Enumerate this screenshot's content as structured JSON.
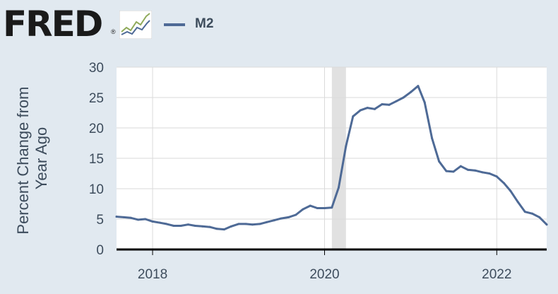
{
  "header": {
    "logo_text": "FRED",
    "logo_mark": "®",
    "logo_icon": "line-graph-icon"
  },
  "colors": {
    "background": "#e1e9f0",
    "plot_background": "#ffffff",
    "series": "#4e6a96",
    "recession_band": "#e1e1e1",
    "axis": "#000000",
    "gridline": "#dadada"
  },
  "chart_data": {
    "type": "line",
    "ylabel": "Percent Change from Year Ago",
    "ylim": [
      0,
      30
    ],
    "yticks": [
      0,
      5,
      10,
      15,
      20,
      25,
      30
    ],
    "xlim": [
      "2017-08-01",
      "2022-08-01"
    ],
    "xticks": [
      "2018",
      "2020",
      "2022"
    ],
    "grid": true,
    "legend_position": "top-left",
    "recessions": [
      {
        "start": "2020-02-01",
        "end": "2020-04-01"
      }
    ],
    "series": [
      {
        "name": "M2",
        "x": [
          "2017-08-01",
          "2017-09-01",
          "2017-10-01",
          "2017-11-01",
          "2017-12-01",
          "2018-01-01",
          "2018-02-01",
          "2018-03-01",
          "2018-04-01",
          "2018-05-01",
          "2018-06-01",
          "2018-07-01",
          "2018-08-01",
          "2018-09-01",
          "2018-10-01",
          "2018-11-01",
          "2018-12-01",
          "2019-01-01",
          "2019-02-01",
          "2019-03-01",
          "2019-04-01",
          "2019-05-01",
          "2019-06-01",
          "2019-07-01",
          "2019-08-01",
          "2019-09-01",
          "2019-10-01",
          "2019-11-01",
          "2019-12-01",
          "2020-01-01",
          "2020-02-01",
          "2020-03-01",
          "2020-04-01",
          "2020-05-01",
          "2020-06-01",
          "2020-07-01",
          "2020-08-01",
          "2020-09-01",
          "2020-10-01",
          "2020-11-01",
          "2020-12-01",
          "2021-01-01",
          "2021-02-01",
          "2021-03-01",
          "2021-04-01",
          "2021-05-01",
          "2021-06-01",
          "2021-07-01",
          "2021-08-01",
          "2021-09-01",
          "2021-10-01",
          "2021-11-01",
          "2021-12-01",
          "2022-01-01",
          "2022-02-01",
          "2022-03-01",
          "2022-04-01",
          "2022-05-01",
          "2022-06-01",
          "2022-07-01",
          "2022-08-01"
        ],
        "values": [
          5.4,
          5.3,
          5.2,
          4.9,
          5.0,
          4.6,
          4.4,
          4.2,
          3.9,
          3.9,
          4.1,
          3.9,
          3.8,
          3.7,
          3.4,
          3.3,
          3.8,
          4.2,
          4.2,
          4.1,
          4.2,
          4.5,
          4.8,
          5.1,
          5.3,
          5.7,
          6.6,
          7.2,
          6.8,
          6.8,
          6.9,
          10.2,
          17.0,
          21.9,
          22.9,
          23.3,
          23.1,
          23.9,
          23.8,
          24.4,
          25.0,
          25.9,
          26.9,
          24.2,
          18.3,
          14.5,
          12.9,
          12.8,
          13.7,
          13.1,
          13.0,
          12.7,
          12.5,
          12.0,
          10.9,
          9.6,
          7.8,
          6.2,
          5.9,
          5.3,
          4.1
        ]
      }
    ]
  }
}
